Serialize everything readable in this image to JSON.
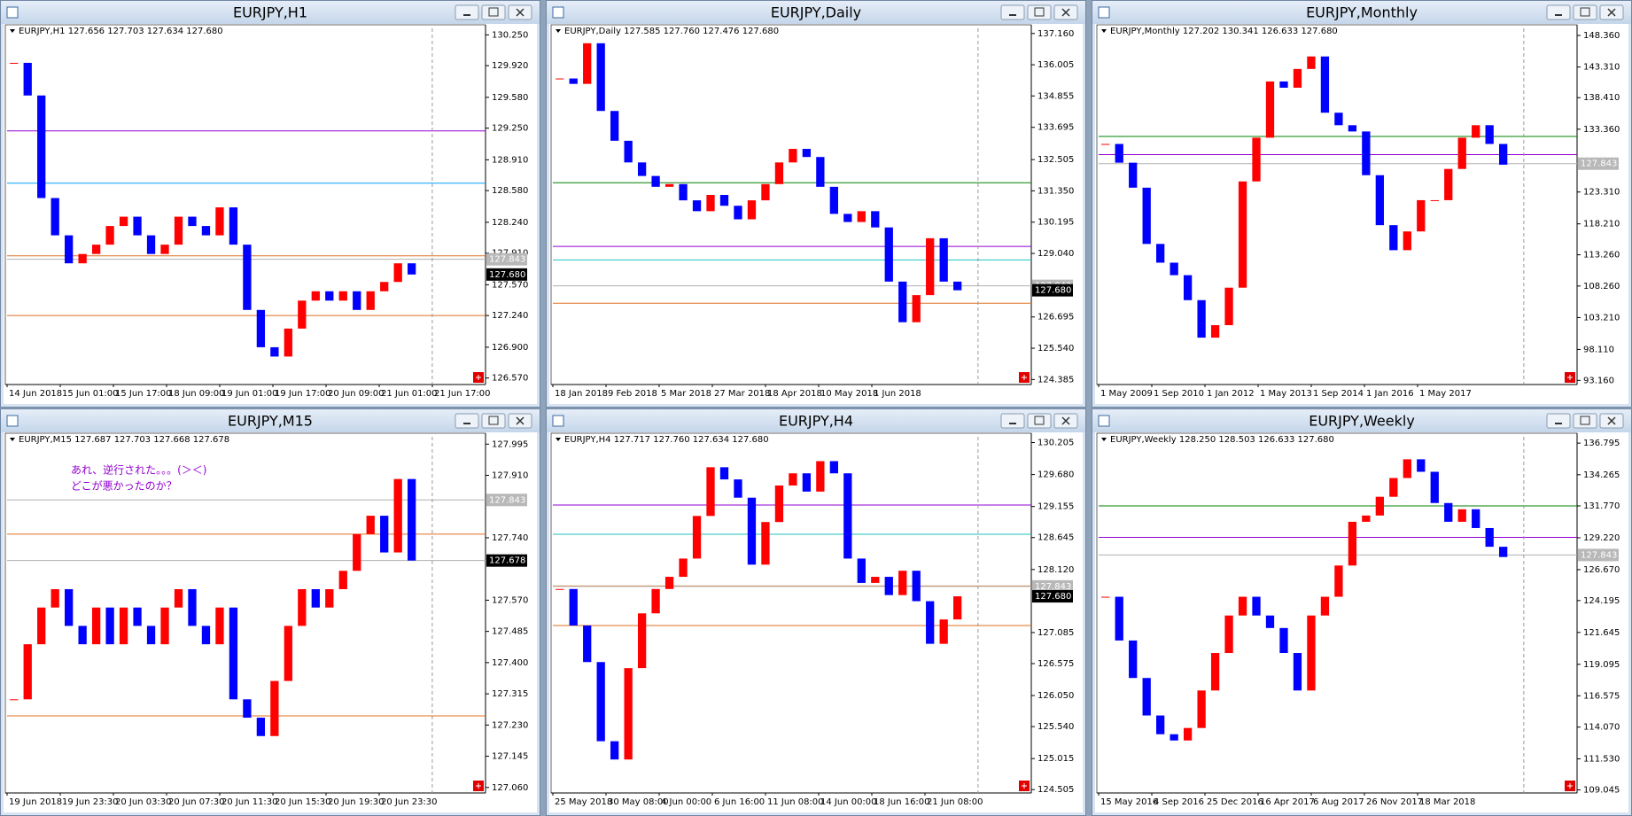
{
  "chart_data": [
    {
      "type": "candlestick",
      "title": "EURJPY,H1",
      "info": "EURJPY,H1  127.656 127.703 127.634 127.680",
      "ylim": [
        126.5,
        130.32
      ],
      "yticks": [
        {
          "value": 130.25,
          "label": "130.250"
        },
        {
          "value": 129.92,
          "label": "129.920"
        },
        {
          "value": 129.58,
          "label": "129.580"
        },
        {
          "value": 129.25,
          "label": "129.250"
        },
        {
          "value": 128.91,
          "label": "128.910"
        },
        {
          "value": 128.58,
          "label": "128.580"
        },
        {
          "value": 128.24,
          "label": "128.240"
        },
        {
          "value": 127.91,
          "label": "127.910"
        },
        {
          "value": 127.57,
          "label": "127.570"
        },
        {
          "value": 127.24,
          "label": "127.240"
        },
        {
          "value": 126.9,
          "label": "126.900"
        },
        {
          "value": 126.57,
          "label": "126.570"
        }
      ],
      "time_labels": [
        "14 Jun 2018",
        "15 Jun 01:00",
        "15 Jun 17:00",
        "18 Jun 09:00",
        "19 Jun 01:00",
        "19 Jun 17:00",
        "20 Jun 09:00",
        "21 Jun 01:00",
        "21 Jun 17:00"
      ],
      "closes": [
        129.95,
        129.6,
        128.5,
        128.1,
        127.8,
        127.9,
        128.0,
        128.2,
        128.3,
        128.1,
        127.9,
        128.0,
        128.3,
        128.2,
        128.1,
        128.4,
        128.0,
        127.3,
        126.9,
        126.8,
        127.1,
        127.4,
        127.5,
        127.4,
        127.5,
        127.3,
        127.5,
        127.6,
        127.8,
        127.68
      ],
      "up_color": "#ff0000",
      "down_color": "#0000ff",
      "levels": [
        {
          "value": 129.22,
          "color": "#9400d3"
        },
        {
          "value": 128.66,
          "color": "#00a0ff"
        },
        {
          "value": 127.88,
          "color": "#e07020"
        },
        {
          "value": 127.24,
          "color": "#e07020"
        },
        {
          "value": 127.843,
          "color": "#b0b0b0"
        }
      ],
      "price_labels": [
        {
          "value": 127.843,
          "label": "127.843",
          "color": "#b8b8b8"
        },
        {
          "value": 127.68,
          "label": "127.680",
          "color": "#000000"
        }
      ]
    },
    {
      "type": "candlestick",
      "title": "EURJPY,Daily",
      "info": "EURJPY,Daily  127.585 127.760 127.476 127.680",
      "ylim": [
        124.2,
        137.35
      ],
      "yticks": [
        {
          "value": 137.16,
          "label": "137.160"
        },
        {
          "value": 136.005,
          "label": "136.005"
        },
        {
          "value": 134.855,
          "label": "134.855"
        },
        {
          "value": 133.695,
          "label": "133.695"
        },
        {
          "value": 132.505,
          "label": "132.505"
        },
        {
          "value": 131.35,
          "label": "131.350"
        },
        {
          "value": 130.195,
          "label": "130.195"
        },
        {
          "value": 129.04,
          "label": "129.040"
        },
        {
          "value": 126.695,
          "label": "126.695"
        },
        {
          "value": 125.54,
          "label": "125.540"
        },
        {
          "value": 124.385,
          "label": "124.385"
        }
      ],
      "time_labels": [
        "18 Jan 2018",
        "9 Feb 2018",
        "5 Mar 2018",
        "27 Mar 2018",
        "18 Apr 2018",
        "10 May 2018",
        "1 Jun 2018"
      ],
      "closes": [
        135.5,
        135.3,
        136.8,
        134.3,
        133.2,
        132.4,
        131.9,
        131.5,
        131.6,
        131.0,
        130.6,
        131.2,
        130.8,
        130.3,
        131.0,
        131.6,
        132.4,
        132.9,
        132.6,
        131.5,
        130.5,
        130.2,
        130.6,
        130.0,
        128.0,
        126.5,
        127.5,
        129.6,
        128.0,
        127.68
      ],
      "up_color": "#ff0000",
      "down_color": "#0000ff",
      "levels": [
        {
          "value": 131.65,
          "color": "#008000"
        },
        {
          "value": 129.3,
          "color": "#9400d3"
        },
        {
          "value": 128.8,
          "color": "#20c0c0"
        },
        {
          "value": 127.2,
          "color": "#e07020"
        },
        {
          "value": 127.843,
          "color": "#b0b0b0"
        }
      ],
      "price_labels": [
        {
          "value": 127.843,
          "label": "127.843",
          "color": "#b8b8b8"
        },
        {
          "value": 127.68,
          "label": "127.680",
          "color": "#000000"
        }
      ]
    },
    {
      "type": "candlestick",
      "title": "EURJPY,Monthly",
      "info": "EURJPY,Monthly  127.202 130.341 126.633 127.680",
      "ylim": [
        92.5,
        149.5
      ],
      "yticks": [
        {
          "value": 148.36,
          "label": "148.360"
        },
        {
          "value": 143.31,
          "label": "143.310"
        },
        {
          "value": 138.41,
          "label": "138.410"
        },
        {
          "value": 133.36,
          "label": "133.360"
        },
        {
          "value": 123.31,
          "label": "123.310"
        },
        {
          "value": 118.21,
          "label": "118.210"
        },
        {
          "value": 113.26,
          "label": "113.260"
        },
        {
          "value": 108.26,
          "label": "108.260"
        },
        {
          "value": 103.21,
          "label": "103.210"
        },
        {
          "value": 98.11,
          "label": "98.110"
        },
        {
          "value": 93.16,
          "label": "93.160"
        }
      ],
      "time_labels": [
        "1 May 2009",
        "1 Sep 2010",
        "1 Jan 2012",
        "1 May 2013",
        "1 Sep 2014",
        "1 Jan 2016",
        "1 May 2017"
      ],
      "closes": [
        131.0,
        128.0,
        124.0,
        115.0,
        112.0,
        110.0,
        106.0,
        100.0,
        102.0,
        108.0,
        125.0,
        132.0,
        141.0,
        140.0,
        143.0,
        145.0,
        136.0,
        134.0,
        133.0,
        126.0,
        118.0,
        114.0,
        117.0,
        122.0,
        122.0,
        127.0,
        132.0,
        134.0,
        131.0,
        127.68
      ],
      "up_color": "#ff0000",
      "down_color": "#0000ff",
      "levels": [
        {
          "value": 132.2,
          "color": "#008000"
        },
        {
          "value": 129.3,
          "color": "#9400d3"
        },
        {
          "value": 127.843,
          "color": "#b0b0b0"
        }
      ],
      "price_labels": [
        {
          "value": 127.843,
          "label": "127.843",
          "color": "#b8b8b8"
        }
      ]
    },
    {
      "type": "candlestick",
      "title": "EURJPY,M15",
      "info": "EURJPY,M15  127.687 127.703 127.668 127.678",
      "annotations": [
        "あれ、逆行された。。。(＞＜)",
        "どこが悪かったのか？"
      ],
      "ylim": [
        127.045,
        128.015
      ],
      "yticks": [
        {
          "value": 127.995,
          "label": "127.995"
        },
        {
          "value": 127.91,
          "label": "127.910"
        },
        {
          "value": 127.74,
          "label": "127.740"
        },
        {
          "value": 127.57,
          "label": "127.570"
        },
        {
          "value": 127.485,
          "label": "127.485"
        },
        {
          "value": 127.4,
          "label": "127.400"
        },
        {
          "value": 127.315,
          "label": "127.315"
        },
        {
          "value": 127.23,
          "label": "127.230"
        },
        {
          "value": 127.145,
          "label": "127.145"
        },
        {
          "value": 127.06,
          "label": "127.060"
        }
      ],
      "time_labels": [
        "19 Jun 2018",
        "19 Jun 23:30",
        "20 Jun 03:30",
        "20 Jun 07:30",
        "20 Jun 11:30",
        "20 Jun 15:30",
        "20 Jun 19:30",
        "20 Jun 23:30"
      ],
      "closes": [
        127.3,
        127.45,
        127.55,
        127.6,
        127.5,
        127.45,
        127.55,
        127.45,
        127.55,
        127.5,
        127.45,
        127.55,
        127.6,
        127.5,
        127.45,
        127.55,
        127.3,
        127.25,
        127.2,
        127.35,
        127.5,
        127.6,
        127.55,
        127.6,
        127.65,
        127.75,
        127.8,
        127.7,
        127.9,
        127.678
      ],
      "up_color": "#ff0000",
      "down_color": "#0000ff",
      "levels": [
        {
          "value": 127.75,
          "color": "#e07020"
        },
        {
          "value": 127.255,
          "color": "#e07020"
        },
        {
          "value": 127.843,
          "color": "#b0b0b0"
        },
        {
          "value": 127.678,
          "color": "#b0b0b0"
        }
      ],
      "price_labels": [
        {
          "value": 127.843,
          "label": "127.843",
          "color": "#b8b8b8"
        },
        {
          "value": 127.678,
          "label": "127.678",
          "color": "#000000"
        }
      ]
    },
    {
      "type": "candlestick",
      "title": "EURJPY,H4",
      "info": "EURJPY,H4  127.717 127.760 127.634 127.680",
      "ylim": [
        124.45,
        130.3
      ],
      "yticks": [
        {
          "value": 130.205,
          "label": "130.205"
        },
        {
          "value": 129.68,
          "label": "129.680"
        },
        {
          "value": 129.155,
          "label": "129.155"
        },
        {
          "value": 128.645,
          "label": "128.645"
        },
        {
          "value": 128.12,
          "label": "128.120"
        },
        {
          "value": 127.085,
          "label": "127.085"
        },
        {
          "value": 126.575,
          "label": "126.575"
        },
        {
          "value": 126.05,
          "label": "126.050"
        },
        {
          "value": 125.54,
          "label": "125.540"
        },
        {
          "value": 125.015,
          "label": "125.015"
        },
        {
          "value": 124.505,
          "label": "124.505"
        }
      ],
      "time_labels": [
        "25 May 2018",
        "30 May 08:00",
        "4 Jun 00:00",
        "6 Jun 16:00",
        "11 Jun 08:00",
        "14 Jun 00:00",
        "18 Jun 16:00",
        "21 Jun 08:00"
      ],
      "closes": [
        127.8,
        127.2,
        126.6,
        125.3,
        125.0,
        126.5,
        127.4,
        127.8,
        128.0,
        128.3,
        129.0,
        129.8,
        129.6,
        129.3,
        128.2,
        128.9,
        129.5,
        129.7,
        129.4,
        129.9,
        129.7,
        128.3,
        127.9,
        128.0,
        127.7,
        128.1,
        127.6,
        126.9,
        127.3,
        127.68
      ],
      "up_color": "#ff0000",
      "down_color": "#0000ff",
      "levels": [
        {
          "value": 129.18,
          "color": "#9400d3"
        },
        {
          "value": 128.7,
          "color": "#20c0c0"
        },
        {
          "value": 127.85,
          "color": "#e07020"
        },
        {
          "value": 127.2,
          "color": "#e07020"
        },
        {
          "value": 127.843,
          "color": "#b0b0b0"
        }
      ],
      "price_labels": [
        {
          "value": 127.843,
          "label": "127.843",
          "color": "#b8b8b8"
        },
        {
          "value": 127.68,
          "label": "127.680",
          "color": "#000000"
        }
      ]
    },
    {
      "type": "candlestick",
      "title": "EURJPY,Weekly",
      "info": "EURJPY,Weekly  128.250 128.503 126.633 127.680",
      "ylim": [
        108.8,
        137.3
      ],
      "yticks": [
        {
          "value": 136.795,
          "label": "136.795"
        },
        {
          "value": 134.265,
          "label": "134.265"
        },
        {
          "value": 131.77,
          "label": "131.770"
        },
        {
          "value": 129.22,
          "label": "129.220"
        },
        {
          "value": 126.67,
          "label": "126.670"
        },
        {
          "value": 124.195,
          "label": "124.195"
        },
        {
          "value": 121.645,
          "label": "121.645"
        },
        {
          "value": 119.095,
          "label": "119.095"
        },
        {
          "value": 116.575,
          "label": "116.575"
        },
        {
          "value": 114.07,
          "label": "114.070"
        },
        {
          "value": 111.53,
          "label": "111.530"
        },
        {
          "value": 109.045,
          "label": "109.045"
        }
      ],
      "time_labels": [
        "15 May 2016",
        "4 Sep 2016",
        "25 Dec 2016",
        "16 Apr 2017",
        "6 Aug 2017",
        "26 Nov 2017",
        "18 Mar 2018"
      ],
      "closes": [
        124.5,
        121.0,
        118.0,
        115.0,
        113.5,
        113.0,
        114.0,
        117.0,
        120.0,
        123.0,
        124.5,
        123.0,
        122.0,
        120.0,
        117.0,
        123.0,
        124.5,
        127.0,
        130.5,
        131.0,
        132.5,
        134.0,
        135.5,
        134.5,
        132.0,
        130.5,
        131.5,
        130.0,
        128.5,
        127.68
      ],
      "up_color": "#ff0000",
      "down_color": "#0000ff",
      "levels": [
        {
          "value": 131.77,
          "color": "#008000"
        },
        {
          "value": 129.25,
          "color": "#9400d3"
        },
        {
          "value": 127.843,
          "color": "#b0b0b0"
        }
      ],
      "price_labels": [
        {
          "value": 127.843,
          "label": "127.843",
          "color": "#b8b8b8"
        }
      ]
    }
  ]
}
